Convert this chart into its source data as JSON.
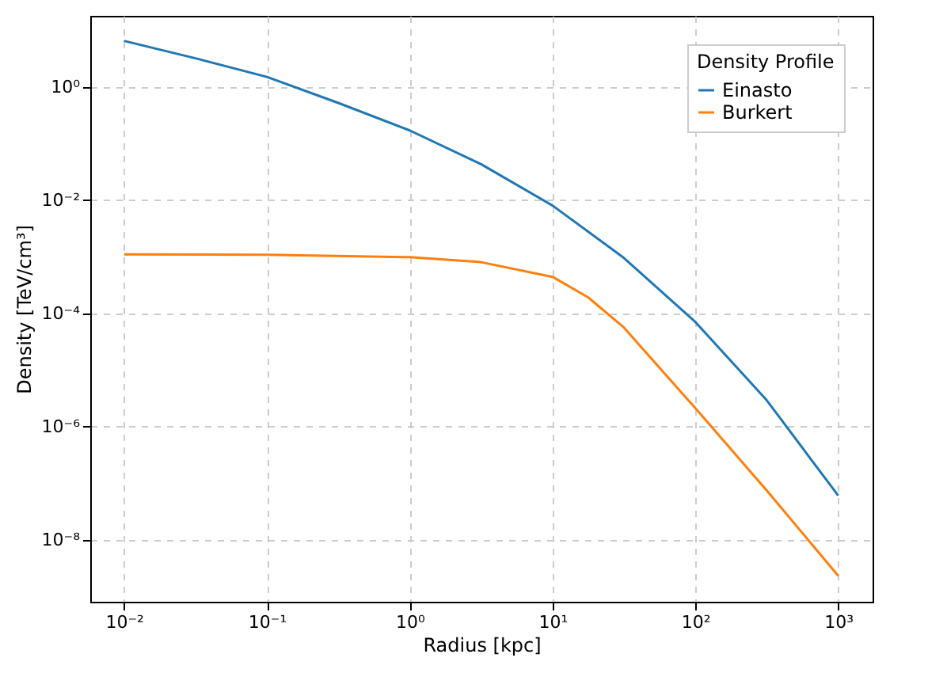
{
  "chart_data": {
    "type": "line",
    "xlabel": "Radius [kpc]",
    "ylabel": "Density [TeV/cm³]",
    "legend_title": "Density Profile",
    "legend": "top right",
    "grid": true,
    "log": "xy",
    "xlim": [
      0.0058,
      1740
    ],
    "ylim": [
      8e-10,
      18
    ],
    "xticks": [
      {
        "value": 0.01,
        "label": "10⁻²"
      },
      {
        "value": 0.1,
        "label": "10⁻¹"
      },
      {
        "value": 1,
        "label": "10⁰"
      },
      {
        "value": 10,
        "label": "10¹"
      },
      {
        "value": 100,
        "label": "10²"
      },
      {
        "value": 1000,
        "label": "10³"
      }
    ],
    "yticks": [
      {
        "value": 1e-08,
        "label": "10⁻⁸"
      },
      {
        "value": 1e-06,
        "label": "10⁻⁶"
      },
      {
        "value": 0.0001,
        "label": "10⁻⁴"
      },
      {
        "value": 0.01,
        "label": "10⁻²"
      },
      {
        "value": 1,
        "label": "10⁰"
      }
    ],
    "series": [
      {
        "name": "Einasto",
        "color": "#1f77b4",
        "x": [
          0.01,
          0.0316,
          0.1,
          0.316,
          1,
          3.16,
          10,
          31.6,
          100,
          316,
          1000
        ],
        "values": [
          6.5,
          3.2,
          1.5,
          0.52,
          0.17,
          0.043,
          0.008,
          0.00095,
          7e-05,
          2.9e-06,
          6e-08
        ]
      },
      {
        "name": "Burkert",
        "color": "#ff7f0e",
        "x": [
          0.01,
          0.1,
          1,
          3.16,
          10,
          17.8,
          31.6,
          100,
          316,
          1000
        ],
        "values": [
          0.0011,
          0.00108,
          0.00098,
          0.0008,
          0.00044,
          0.00019,
          5.6e-05,
          2.1e-06,
          7.4e-08,
          2.3e-09
        ]
      }
    ]
  }
}
